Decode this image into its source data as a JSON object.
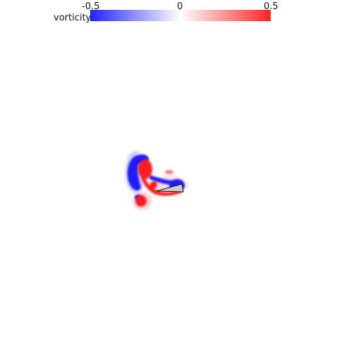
{
  "colorbar": {
    "label": "vorticity",
    "min_label": "-0.5",
    "mid_label": "0",
    "max_label": "0.5",
    "min_value": -0.5,
    "max_value": 0.5,
    "low_color": "#2222ff",
    "mid_color": "#ffffff",
    "high_color": "#ff2222"
  },
  "colors": {
    "positive_vortex": "#ff1a1a",
    "negative_vortex": "#1a1aff",
    "body_fill": "#cccccc",
    "body_outline": "#111111"
  }
}
